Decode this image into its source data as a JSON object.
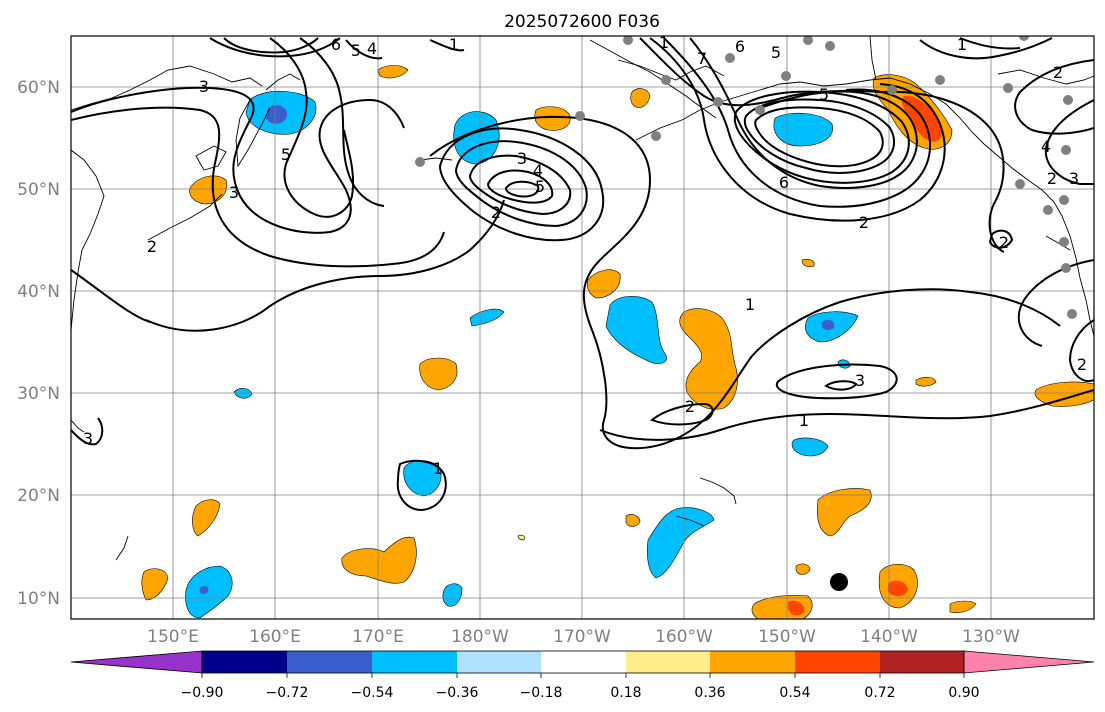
{
  "title": "2025072600 F036",
  "map": {
    "lat_labels": [
      "60°N",
      "50°N",
      "40°N",
      "30°N",
      "20°N",
      "10°N"
    ],
    "lon_labels": [
      "150°E",
      "160°E",
      "170°E",
      "180°W",
      "170°W",
      "160°W",
      "150°W",
      "140°W",
      "130°W"
    ],
    "grid": true,
    "contour_color": "#000000",
    "coast_color": "#000000",
    "station_marker_color": "#808080",
    "storm_marker_color": "#000000"
  },
  "contour_labels": [
    "6",
    "5",
    "4",
    "1",
    "3",
    "5",
    "3",
    "2",
    "2",
    "3",
    "4",
    "5",
    "2",
    "6",
    "5",
    "7",
    "1",
    "6",
    "2",
    "5",
    "4",
    "3",
    "1",
    "2",
    "1",
    "2",
    "3",
    "2",
    "1",
    "2",
    "1",
    "3"
  ],
  "colorbar": {
    "colors": [
      "#9932cc",
      "#00008b",
      "#3a5fcd",
      "#00bfff",
      "#b0e2ff",
      "#ffffff",
      "#ffec8b",
      "#ffa500",
      "#ff4500",
      "#b22222",
      "#ff82ab"
    ],
    "tick_labels": [
      "−0.90",
      "−0.72",
      "−0.54",
      "−0.36",
      "−0.18",
      "0.18",
      "0.36",
      "0.54",
      "0.72",
      "0.90"
    ],
    "extend": "both"
  }
}
